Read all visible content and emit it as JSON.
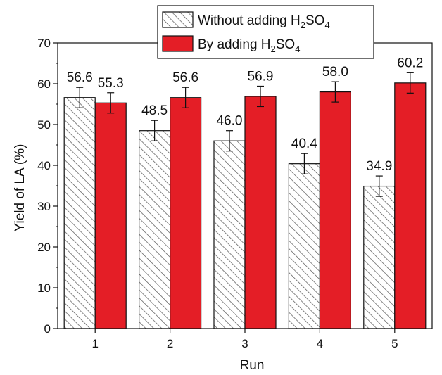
{
  "chart_data": {
    "type": "bar",
    "categories": [
      "1",
      "2",
      "3",
      "4",
      "5"
    ],
    "series": [
      {
        "name": "Without adding H2SO4",
        "legend_parts": [
          {
            "t": "Without adding H",
            "sub": false
          },
          {
            "t": "2",
            "sub": true
          },
          {
            "t": "SO",
            "sub": false
          },
          {
            "t": "4",
            "sub": true
          }
        ],
        "values": [
          56.6,
          48.5,
          46.0,
          40.4,
          34.9
        ],
        "labels": [
          "56.6",
          "48.5",
          "46.0",
          "40.4",
          "34.9"
        ],
        "error": [
          2.5,
          2.5,
          2.5,
          2.5,
          2.5
        ],
        "fill": "hatched",
        "color": "#ffffff"
      },
      {
        "name": "By adding H2SO4",
        "legend_parts": [
          {
            "t": "By adding H",
            "sub": false
          },
          {
            "t": "2",
            "sub": true
          },
          {
            "t": "SO",
            "sub": false
          },
          {
            "t": "4",
            "sub": true
          }
        ],
        "values": [
          55.3,
          56.6,
          56.9,
          58.0,
          60.2
        ],
        "labels": [
          "55.3",
          "56.6",
          "56.9",
          "58.0",
          "60.2"
        ],
        "error": [
          2.5,
          2.5,
          2.5,
          2.5,
          2.5
        ],
        "fill": "solid",
        "color": "#e41e26"
      }
    ],
    "xlabel": "Run",
    "ylabel": "Yield of LA (%)",
    "ylim": [
      0,
      70
    ],
    "yticks": [
      "0",
      "10",
      "20",
      "30",
      "40",
      "50",
      "60",
      "70"
    ],
    "grid": false,
    "legend_position": "top-center"
  }
}
